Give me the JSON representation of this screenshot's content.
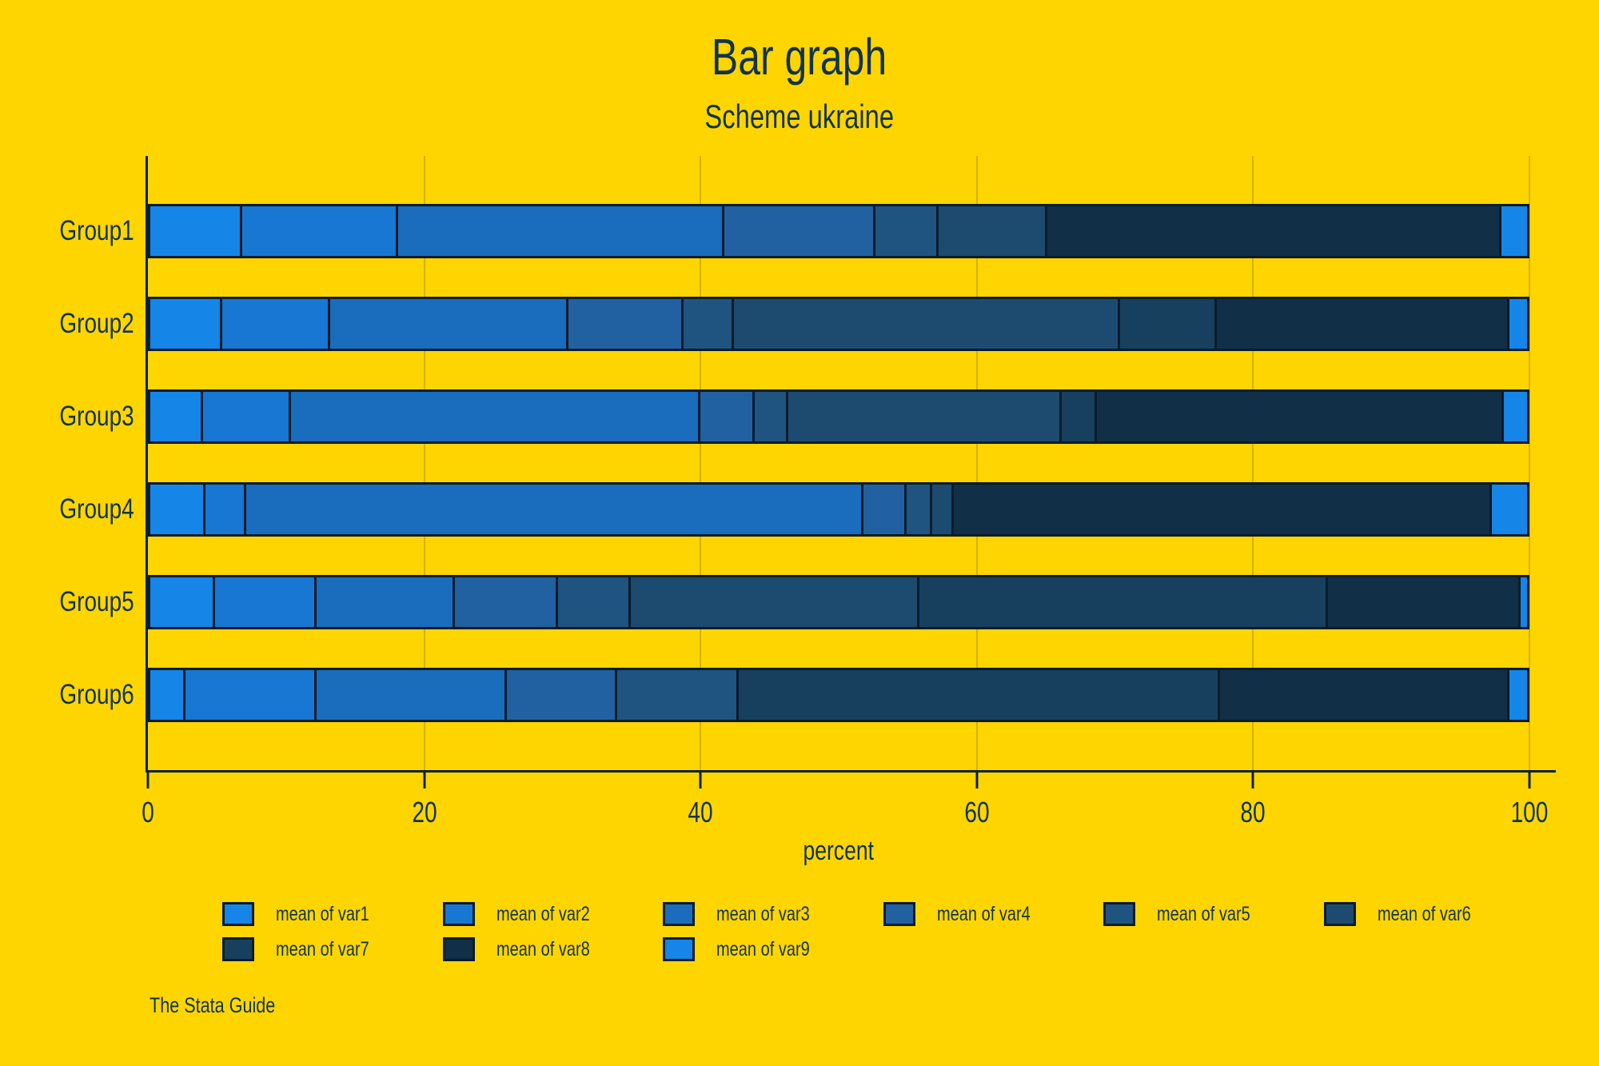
{
  "title": "Bar graph",
  "subtitle": "Scheme ukraine",
  "caption": "The Stata Guide",
  "colors": {
    "background": "#FFD500",
    "text": "#12334A",
    "axis": "#0B2236",
    "bar_border": "#0A1C2B",
    "gridline": "rgba(0,0,0,0.16)",
    "palette": [
      "#1585E8",
      "#1777D3",
      "#1A6CBD",
      "#2161A1",
      "#1F5480",
      "#1D4B70",
      "#16405E",
      "#112F46",
      "#1585E8"
    ]
  },
  "chart_data": {
    "type": "bar",
    "orientation": "horizontal",
    "stacked": true,
    "title": "Bar graph",
    "subtitle": "Scheme ukraine",
    "xlabel": "percent",
    "ylabel": "",
    "xlim": [
      0,
      100
    ],
    "x_ticks": [
      0,
      20,
      40,
      60,
      80,
      100
    ],
    "grid": true,
    "legend_position": "bottom",
    "categories": [
      "Group1",
      "Group2",
      "Group3",
      "Group4",
      "Group5",
      "Group6"
    ],
    "series": [
      {
        "name": "mean of var1",
        "color": "#1585E8",
        "values": [
          6.6,
          5.1,
          3.7,
          3.9,
          4.6,
          2.4
        ]
      },
      {
        "name": "mean of var2",
        "color": "#1777D3",
        "values": [
          11.3,
          7.8,
          6.3,
          2.8,
          7.3,
          9.5
        ]
      },
      {
        "name": "mean of var3",
        "color": "#1A6CBD",
        "values": [
          23.8,
          17.4,
          30.0,
          45.2,
          10.0,
          13.8
        ]
      },
      {
        "name": "mean of var4",
        "color": "#2161A1",
        "values": [
          10.9,
          8.3,
          3.8,
          3.0,
          7.4,
          7.9
        ]
      },
      {
        "name": "mean of var5",
        "color": "#1F5480",
        "values": [
          4.5,
          3.5,
          2.3,
          1.7,
          5.2,
          8.8
        ]
      },
      {
        "name": "mean of var6",
        "color": "#1D4B70",
        "values": [
          7.8,
          28.3,
          20.0,
          1.4,
          21.1,
          0
        ]
      },
      {
        "name": "mean of var7",
        "color": "#16405E",
        "values": [
          0,
          6.9,
          2.4,
          0,
          29.9,
          35.2
        ]
      },
      {
        "name": "mean of var8",
        "color": "#112F46",
        "values": [
          33.2,
          21.4,
          29.8,
          39.4,
          14.0,
          21.1
        ]
      },
      {
        "name": "mean of var9",
        "color": "#1585E8",
        "values": [
          1.9,
          1.3,
          1.7,
          2.6,
          0.5,
          1.3
        ]
      }
    ]
  }
}
